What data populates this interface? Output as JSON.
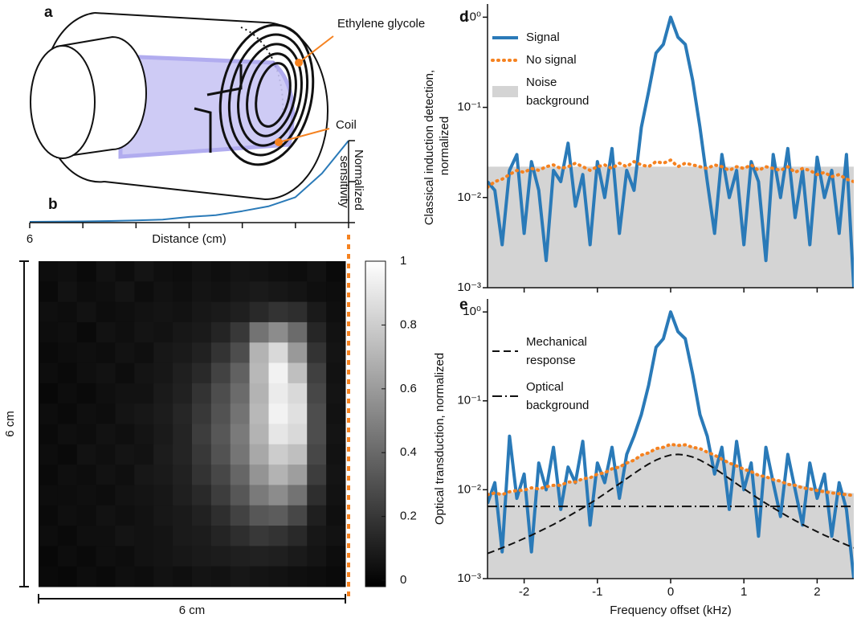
{
  "diagram": {
    "label": "a",
    "annotations": [
      "Ethylene glycole",
      "Coil"
    ]
  },
  "chart_data": [
    {
      "type": "line",
      "label": "b",
      "xlabel": "Distance (cm)",
      "ylabel": "Normalized sensitivity",
      "x": [
        6,
        5.5,
        5,
        4.5,
        4,
        3.5,
        3,
        2.5,
        2,
        1.5,
        1,
        0.5,
        0
      ],
      "series": [
        {
          "color": "#2a7ab8",
          "style": "solid",
          "values": [
            0.01,
            0.012,
            0.015,
            0.02,
            0.027,
            0.037,
            0.07,
            0.09,
            0.14,
            0.2,
            0.31,
            0.6,
            1.0
          ]
        }
      ],
      "xlim": [
        6,
        0
      ],
      "ylim": [
        0,
        1
      ],
      "xticks": [
        6
      ],
      "xminor_ticks": [
        5,
        4,
        3,
        2,
        1,
        0
      ],
      "yminor_ticks": [
        0,
        0.5,
        1
      ]
    },
    {
      "type": "heatmap",
      "label": "c",
      "xlabel": "6 cm",
      "ylabel": "6 cm",
      "clim": [
        -0.02,
        1
      ],
      "cticks": [
        0,
        0.2,
        0.4,
        0.6,
        0.8,
        1
      ],
      "values": [
        [
          0.05,
          0.06,
          0.04,
          0.07,
          0.05,
          0.08,
          0.06,
          0.05,
          0.07,
          0.06,
          0.08,
          0.07,
          0.06,
          0.05,
          0.07,
          0.04
        ],
        [
          0.04,
          0.07,
          0.05,
          0.06,
          0.08,
          0.05,
          0.07,
          0.06,
          0.08,
          0.07,
          0.09,
          0.1,
          0.09,
          0.08,
          0.06,
          0.05
        ],
        [
          0.06,
          0.05,
          0.07,
          0.05,
          0.06,
          0.07,
          0.08,
          0.07,
          0.09,
          0.1,
          0.12,
          0.16,
          0.2,
          0.18,
          0.1,
          0.06
        ],
        [
          0.05,
          0.06,
          0.04,
          0.07,
          0.06,
          0.08,
          0.07,
          0.09,
          0.1,
          0.14,
          0.22,
          0.45,
          0.55,
          0.42,
          0.15,
          0.07
        ],
        [
          0.04,
          0.05,
          0.06,
          0.05,
          0.07,
          0.06,
          0.09,
          0.1,
          0.13,
          0.2,
          0.3,
          0.7,
          0.85,
          0.6,
          0.2,
          0.08
        ],
        [
          0.05,
          0.04,
          0.06,
          0.07,
          0.05,
          0.08,
          0.09,
          0.12,
          0.16,
          0.26,
          0.38,
          0.72,
          0.95,
          0.75,
          0.25,
          0.07
        ],
        [
          0.03,
          0.05,
          0.04,
          0.06,
          0.07,
          0.07,
          0.1,
          0.13,
          0.2,
          0.3,
          0.42,
          0.7,
          0.92,
          0.85,
          0.28,
          0.08
        ],
        [
          0.05,
          0.04,
          0.06,
          0.05,
          0.08,
          0.09,
          0.11,
          0.15,
          0.22,
          0.32,
          0.45,
          0.72,
          0.95,
          0.88,
          0.3,
          0.07
        ],
        [
          0.04,
          0.06,
          0.05,
          0.07,
          0.06,
          0.08,
          0.1,
          0.14,
          0.24,
          0.34,
          0.48,
          0.7,
          0.9,
          0.85,
          0.3,
          0.08
        ],
        [
          0.05,
          0.04,
          0.07,
          0.06,
          0.08,
          0.07,
          0.11,
          0.14,
          0.22,
          0.32,
          0.46,
          0.66,
          0.8,
          0.75,
          0.28,
          0.07
        ],
        [
          0.04,
          0.06,
          0.05,
          0.07,
          0.06,
          0.09,
          0.1,
          0.13,
          0.2,
          0.28,
          0.4,
          0.58,
          0.7,
          0.62,
          0.24,
          0.08
        ],
        [
          0.05,
          0.05,
          0.06,
          0.05,
          0.07,
          0.08,
          0.09,
          0.12,
          0.16,
          0.24,
          0.34,
          0.48,
          0.55,
          0.45,
          0.18,
          0.07
        ],
        [
          0.04,
          0.06,
          0.05,
          0.07,
          0.06,
          0.07,
          0.09,
          0.1,
          0.13,
          0.18,
          0.26,
          0.34,
          0.36,
          0.28,
          0.12,
          0.06
        ],
        [
          0.05,
          0.04,
          0.06,
          0.06,
          0.08,
          0.07,
          0.08,
          0.1,
          0.11,
          0.14,
          0.18,
          0.22,
          0.2,
          0.16,
          0.09,
          0.07
        ],
        [
          0.03,
          0.05,
          0.04,
          0.06,
          0.05,
          0.07,
          0.08,
          0.09,
          0.1,
          0.11,
          0.12,
          0.13,
          0.12,
          0.1,
          0.08,
          0.05
        ],
        [
          0.04,
          0.03,
          0.05,
          0.04,
          0.06,
          0.05,
          0.07,
          0.06,
          0.08,
          0.07,
          0.09,
          0.08,
          0.07,
          0.06,
          0.05,
          0.04
        ]
      ]
    },
    {
      "type": "line",
      "label": "d",
      "ylabel": "Classical induction detection, normalized",
      "log_y": true,
      "x": [
        -2.5,
        -2.4,
        -2.3,
        -2.2,
        -2.1,
        -2.0,
        -1.9,
        -1.8,
        -1.7,
        -1.6,
        -1.5,
        -1.4,
        -1.3,
        -1.2,
        -1.1,
        -1.0,
        -0.9,
        -0.8,
        -0.7,
        -0.6,
        -0.5,
        -0.4,
        -0.3,
        -0.2,
        -0.1,
        0,
        0.1,
        0.2,
        0.3,
        0.4,
        0.5,
        0.6,
        0.7,
        0.8,
        0.9,
        1.0,
        1.1,
        1.2,
        1.3,
        1.4,
        1.5,
        1.6,
        1.7,
        1.8,
        1.9,
        2.0,
        2.1,
        2.2,
        2.3,
        2.4,
        2.5
      ],
      "series": [
        {
          "name": "Noise background",
          "color": "#d4d4d4",
          "style": "area",
          "values": [
            0.022,
            0.022,
            0.022,
            0.022,
            0.022,
            0.022,
            0.022,
            0.022,
            0.022,
            0.022,
            0.022,
            0.022,
            0.022,
            0.022,
            0.022,
            0.022,
            0.022,
            0.022,
            0.022,
            0.022,
            0.022,
            0.022,
            0.022,
            0.022,
            0.022,
            0.022,
            0.022,
            0.022,
            0.022,
            0.022,
            0.022,
            0.022,
            0.022,
            0.022,
            0.022,
            0.022,
            0.022,
            0.022,
            0.022,
            0.022,
            0.022,
            0.022,
            0.022,
            0.022,
            0.022,
            0.022,
            0.022,
            0.022,
            0.022,
            0.022,
            0.022
          ]
        },
        {
          "name": "Signal",
          "color": "#2a7ab8",
          "style": "solid",
          "values": [
            0.015,
            0.012,
            0.003,
            0.02,
            0.03,
            0.004,
            0.025,
            0.012,
            0.002,
            0.02,
            0.015,
            0.04,
            0.008,
            0.018,
            0.003,
            0.025,
            0.01,
            0.035,
            0.004,
            0.02,
            0.012,
            0.06,
            0.15,
            0.4,
            0.5,
            1.0,
            0.6,
            0.5,
            0.2,
            0.06,
            0.015,
            0.004,
            0.03,
            0.01,
            0.02,
            0.003,
            0.025,
            0.015,
            0.002,
            0.03,
            0.01,
            0.035,
            0.006,
            0.02,
            0.003,
            0.028,
            0.01,
            0.02,
            0.004,
            0.03,
            0.001
          ]
        },
        {
          "name": "No signal",
          "color": "#f58220",
          "style": "dotted",
          "values": [
            0.013,
            0.015,
            0.016,
            0.018,
            0.02,
            0.019,
            0.021,
            0.02,
            0.022,
            0.023,
            0.021,
            0.022,
            0.024,
            0.022,
            0.02,
            0.022,
            0.023,
            0.021,
            0.024,
            0.022,
            0.025,
            0.023,
            0.022,
            0.025,
            0.024,
            0.026,
            0.022,
            0.024,
            0.023,
            0.022,
            0.021,
            0.023,
            0.022,
            0.02,
            0.022,
            0.021,
            0.023,
            0.02,
            0.022,
            0.021,
            0.02,
            0.022,
            0.019,
            0.021,
            0.02,
            0.018,
            0.019,
            0.017,
            0.018,
            0.016,
            0.015
          ]
        }
      ],
      "legend_order": [
        1,
        2,
        0
      ],
      "xlim": [
        -2.5,
        2.5
      ],
      "ylim": [
        0.001,
        1.4
      ],
      "xminor_ticks": [
        -2,
        -1,
        0,
        1,
        2
      ],
      "yticks": [
        {
          "value": 1,
          "label": "10⁰"
        },
        {
          "value": 0.1,
          "label": "10⁻¹"
        },
        {
          "value": 0.01,
          "label": "10⁻²"
        },
        {
          "value": 0.001,
          "label": "10⁻³"
        }
      ]
    },
    {
      "type": "line",
      "label": "e",
      "xlabel": "Frequency offset (kHz)",
      "ylabel": "Optical transduction, normalized",
      "log_y": true,
      "x": [
        -2.5,
        -2.4,
        -2.3,
        -2.2,
        -2.1,
        -2.0,
        -1.9,
        -1.8,
        -1.7,
        -1.6,
        -1.5,
        -1.4,
        -1.3,
        -1.2,
        -1.1,
        -1.0,
        -0.9,
        -0.8,
        -0.7,
        -0.6,
        -0.5,
        -0.4,
        -0.3,
        -0.2,
        -0.1,
        0,
        0.1,
        0.2,
        0.3,
        0.4,
        0.5,
        0.6,
        0.7,
        0.8,
        0.9,
        1.0,
        1.1,
        1.2,
        1.3,
        1.4,
        1.5,
        1.6,
        1.7,
        1.8,
        1.9,
        2.0,
        2.1,
        2.2,
        2.3,
        2.4,
        2.5
      ],
      "series": [
        {
          "color": "#d4d4d4",
          "style": "area",
          "values": [
            0.0089,
            0.009,
            0.0091,
            0.0093,
            0.0095,
            0.0098,
            0.0101,
            0.0104,
            0.0107,
            0.0111,
            0.0115,
            0.012,
            0.0126,
            0.0133,
            0.014,
            0.0149,
            0.016,
            0.0172,
            0.0187,
            0.0204,
            0.0222,
            0.0243,
            0.0265,
            0.0285,
            0.0303,
            0.0316,
            0.032,
            0.0316,
            0.0303,
            0.0285,
            0.0265,
            0.0243,
            0.0222,
            0.0204,
            0.0187,
            0.0172,
            0.016,
            0.0149,
            0.014,
            0.0133,
            0.0126,
            0.012,
            0.0115,
            0.0111,
            0.0107,
            0.0104,
            0.0101,
            0.0098,
            0.0095,
            0.0093,
            0.0091
          ]
        },
        {
          "color": "#2a7ab8",
          "style": "solid",
          "values": [
            0.007,
            0.012,
            0.002,
            0.04,
            0.008,
            0.015,
            0.002,
            0.02,
            0.01,
            0.03,
            0.006,
            0.018,
            0.012,
            0.035,
            0.004,
            0.02,
            0.012,
            0.03,
            0.008,
            0.025,
            0.04,
            0.07,
            0.15,
            0.4,
            0.5,
            1.0,
            0.6,
            0.5,
            0.2,
            0.07,
            0.04,
            0.015,
            0.03,
            0.006,
            0.035,
            0.01,
            0.02,
            0.003,
            0.03,
            0.012,
            0.005,
            0.025,
            0.01,
            0.004,
            0.02,
            0.008,
            0.015,
            0.003,
            0.012,
            0.006,
            0.001
          ]
        },
        {
          "color": "#f58220",
          "style": "dotted",
          "values": [
            0.0088,
            0.0092,
            0.0088,
            0.0095,
            0.0098,
            0.0099,
            0.0105,
            0.0102,
            0.0108,
            0.0112,
            0.0112,
            0.0122,
            0.0122,
            0.0133,
            0.0136,
            0.015,
            0.0155,
            0.0172,
            0.018,
            0.02,
            0.0215,
            0.0245,
            0.026,
            0.029,
            0.03,
            0.0325,
            0.0315,
            0.032,
            0.03,
            0.029,
            0.0265,
            0.0245,
            0.022,
            0.02,
            0.0185,
            0.017,
            0.016,
            0.0145,
            0.014,
            0.013,
            0.0125,
            0.0115,
            0.0112,
            0.0105,
            0.0102,
            0.0098,
            0.0095,
            0.0092,
            0.009,
            0.0088,
            0.0086
          ]
        },
        {
          "name": "Mechanical response",
          "color": "#111111",
          "style": "dashed",
          "values": [
            0.00192,
            0.00206,
            0.00222,
            0.0024,
            0.0026,
            0.00283,
            0.00308,
            0.00337,
            0.0037,
            0.00407,
            0.0045,
            0.005,
            0.00558,
            0.00625,
            0.00702,
            0.00794,
            0.009,
            0.01025,
            0.01169,
            0.01336,
            0.01524,
            0.01731,
            0.01947,
            0.02155,
            0.02334,
            0.02456,
            0.025,
            0.02456,
            0.02334,
            0.02155,
            0.01947,
            0.01731,
            0.01524,
            0.01336,
            0.01169,
            0.01025,
            0.009,
            0.00794,
            0.00702,
            0.00625,
            0.00558,
            0.005,
            0.0045,
            0.00407,
            0.0037,
            0.00337,
            0.00308,
            0.00283,
            0.0026,
            0.0024,
            0.00222
          ]
        },
        {
          "name": "Optical background",
          "color": "#111111",
          "style": "dashdot",
          "values": [
            0.0065,
            0.0065,
            0.0065,
            0.0065,
            0.0065,
            0.0065,
            0.0065,
            0.0065,
            0.0065,
            0.0065,
            0.0065,
            0.0065,
            0.0065,
            0.0065,
            0.0065,
            0.0065,
            0.0065,
            0.0065,
            0.0065,
            0.0065,
            0.0065,
            0.0065,
            0.0065,
            0.0065,
            0.0065,
            0.0065,
            0.0065,
            0.0065,
            0.0065,
            0.0065,
            0.0065,
            0.0065,
            0.0065,
            0.0065,
            0.0065,
            0.0065,
            0.0065,
            0.0065,
            0.0065,
            0.0065,
            0.0065,
            0.0065,
            0.0065,
            0.0065,
            0.0065,
            0.0065,
            0.0065,
            0.0065,
            0.0065,
            0.0065,
            0.0065
          ]
        }
      ],
      "legend_order": [
        3,
        4
      ],
      "xlim": [
        -2.5,
        2.5
      ],
      "ylim": [
        0.001,
        1.4
      ],
      "xticks": [
        -2,
        -1,
        0,
        1,
        2
      ],
      "yticks": [
        {
          "value": 1,
          "label": "10⁰"
        },
        {
          "value": 0.1,
          "label": "10⁻¹"
        },
        {
          "value": 0.01,
          "label": "10⁻²"
        },
        {
          "value": 0.001,
          "label": "10⁻³"
        }
      ]
    }
  ]
}
